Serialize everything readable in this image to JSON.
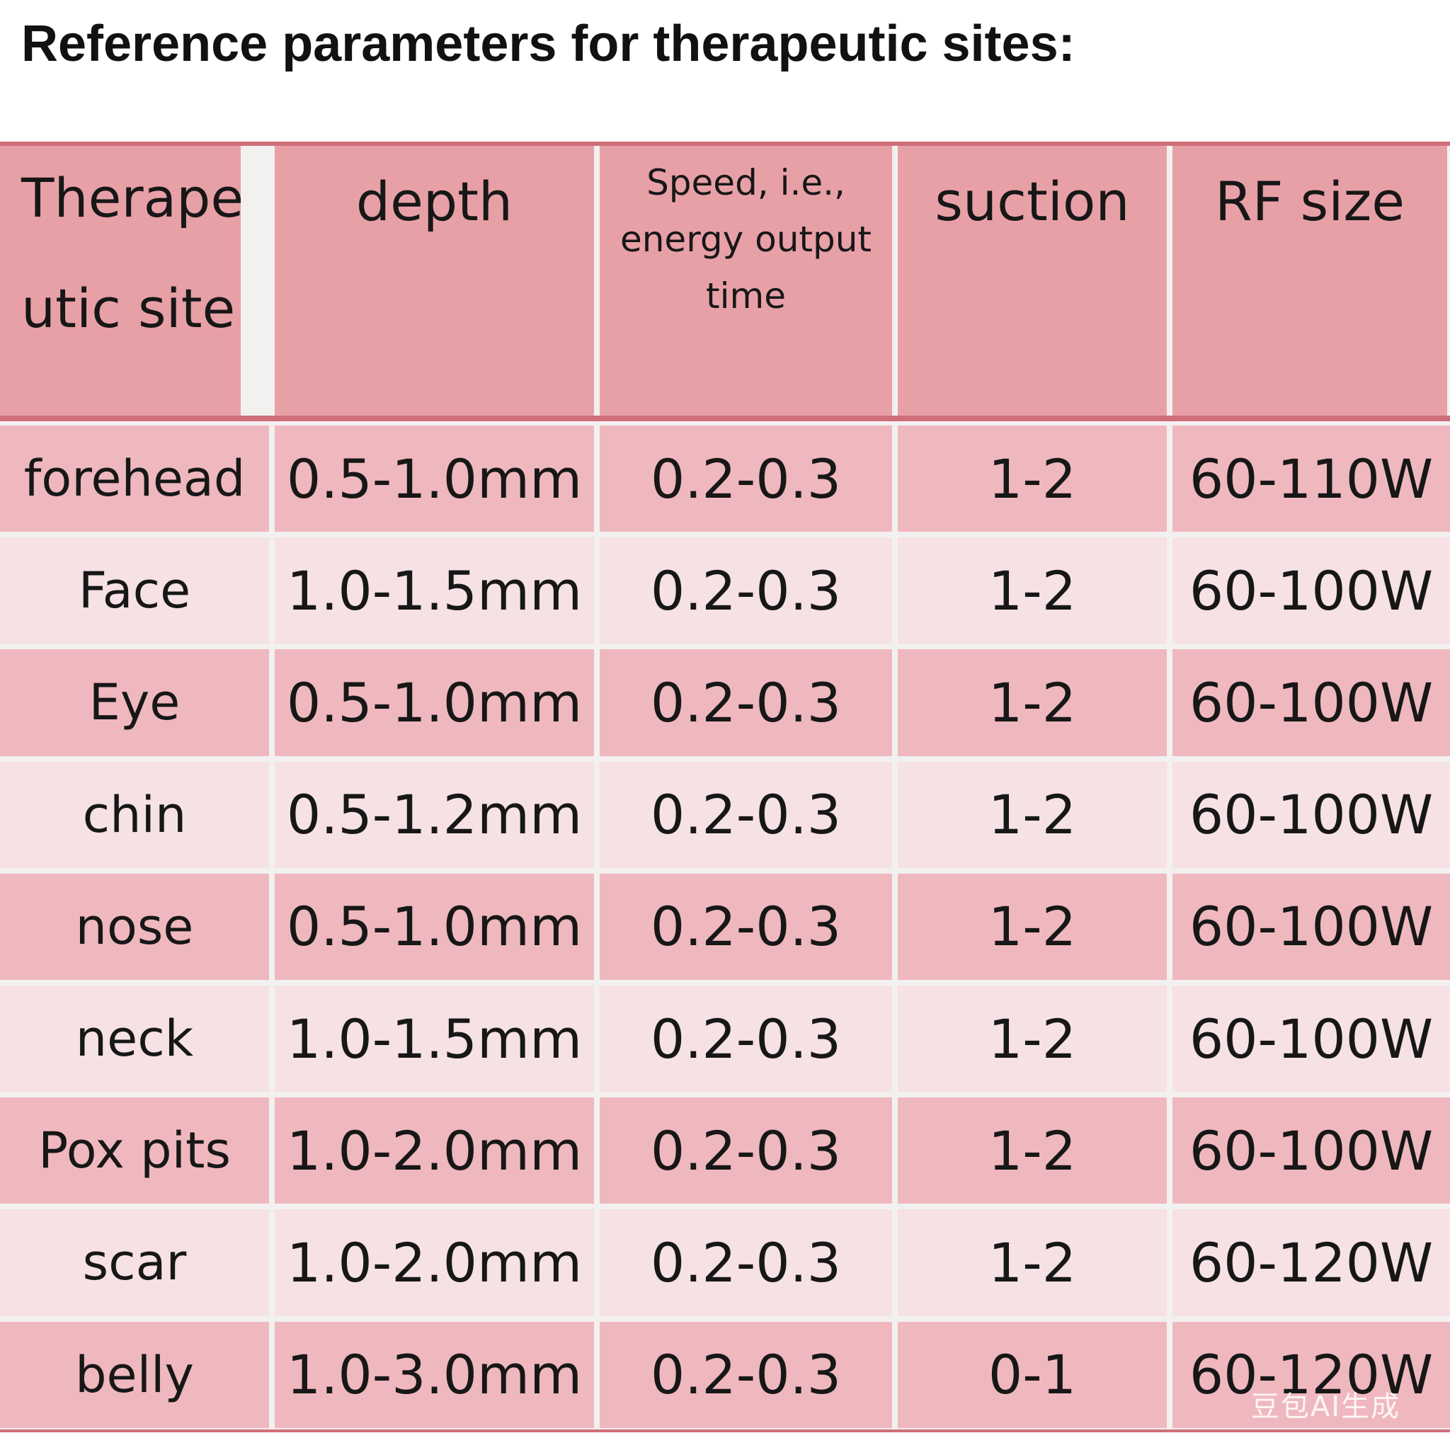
{
  "title": "Reference parameters for therapeutic sites:",
  "table": {
    "headers": [
      "Therape utic site",
      "depth",
      "Speed, i.e., energy output time",
      "suction",
      "RF size"
    ],
    "rows": [
      [
        "forehead",
        "0.5-1.0mm",
        "0.2-0.3",
        "1-2",
        "60-110W"
      ],
      [
        "Face",
        "1.0-1.5mm",
        "0.2-0.3",
        "1-2",
        "60-100W"
      ],
      [
        "Eye",
        "0.5-1.0mm",
        "0.2-0.3",
        "1-2",
        "60-100W"
      ],
      [
        "chin",
        "0.5-1.2mm",
        "0.2-0.3",
        "1-2",
        "60-100W"
      ],
      [
        "nose",
        "0.5-1.0mm",
        "0.2-0.3",
        "1-2",
        "60-100W"
      ],
      [
        "neck",
        "1.0-1.5mm",
        "0.2-0.3",
        "1-2",
        "60-100W"
      ],
      [
        "Pox pits",
        "1.0-2.0mm",
        "0.2-0.3",
        "1-2",
        "60-100W"
      ],
      [
        "scar",
        "1.0-2.0mm",
        "0.2-0.3",
        "1-2",
        "60-120W"
      ],
      [
        "belly",
        "1.0-3.0mm",
        "0.2-0.3",
        "0-1",
        "60-120W"
      ]
    ]
  },
  "watermark": "豆包AI生成",
  "colors": {
    "header_bg": "#e8a0a7",
    "row_dark": "#efb8be",
    "row_light": "#f6e1e4",
    "rule": "#cf6f7a",
    "text": "#171717"
  }
}
